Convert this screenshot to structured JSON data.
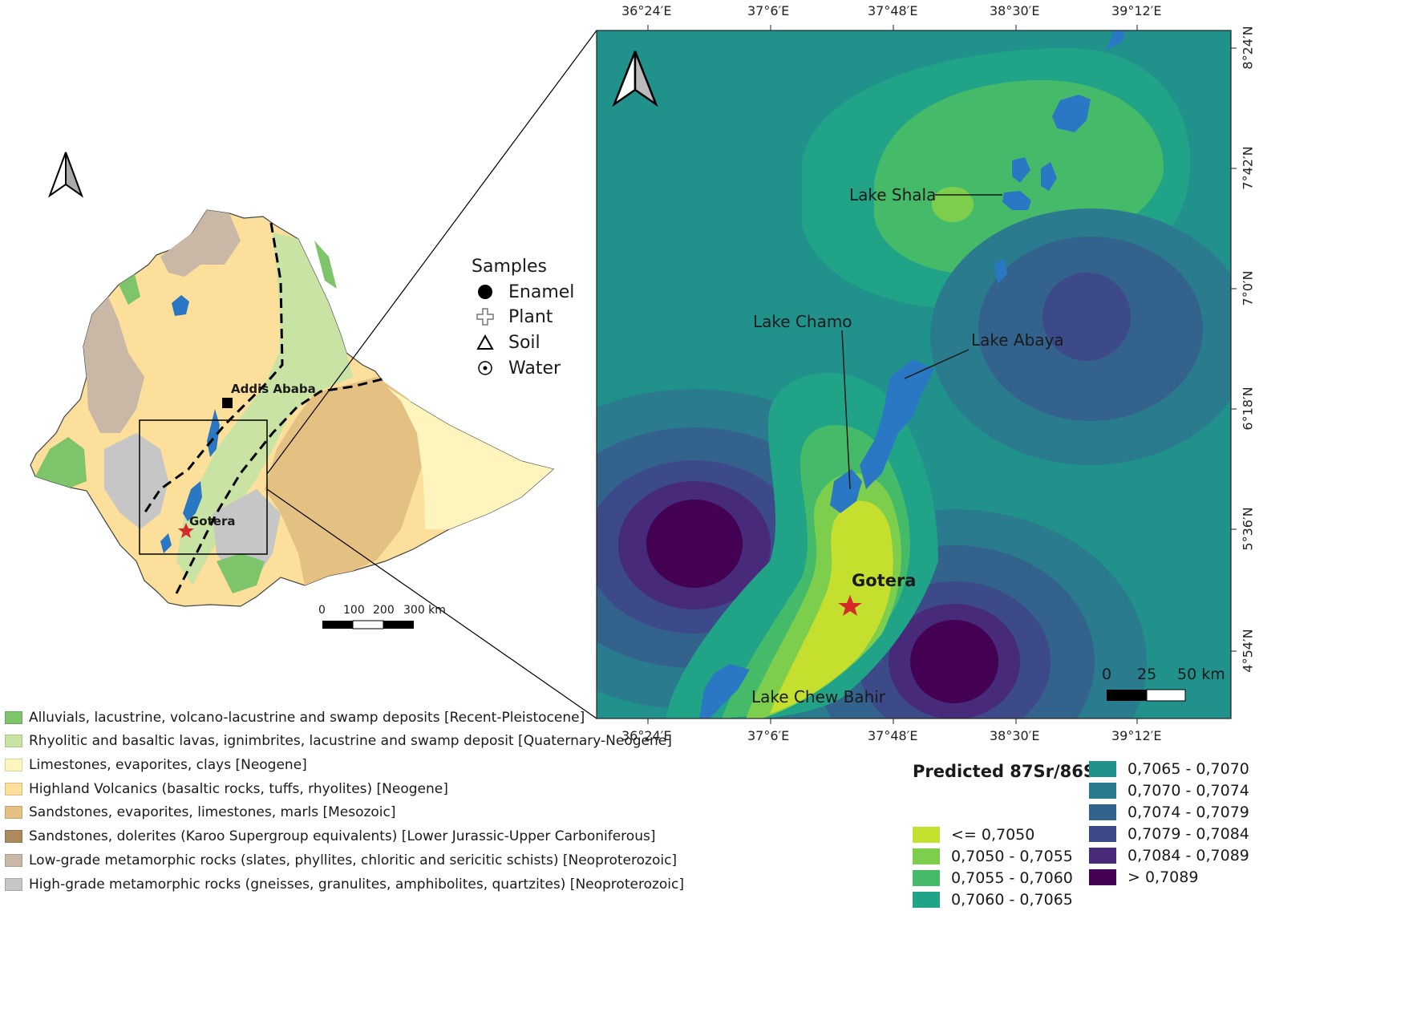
{
  "left_map": {
    "city_label": "Addis Ababa",
    "site_label": "Gotera",
    "scale": {
      "ticks": [
        "0",
        "100",
        "200",
        "300 km"
      ]
    }
  },
  "samples_legend": {
    "title": "Samples",
    "items": [
      {
        "label": "Enamel",
        "icon": "filled-circle-icon"
      },
      {
        "label": "Plant",
        "icon": "cross-outline-icon"
      },
      {
        "label": "Soil",
        "icon": "triangle-outline-icon"
      },
      {
        "label": "Water",
        "icon": "dotted-circle-icon"
      }
    ]
  },
  "geology_legend": [
    {
      "label": "Alluvials, lacustrine, volcano-lacustrine and swamp deposits [Recent-Pleistocene]",
      "color": "#7dc46b"
    },
    {
      "label": "Rhyolitic and basaltic lavas, ignimbrites, lacustrine and swamp deposit [Quaternary-Neogene]",
      "color": "#c8e3a3"
    },
    {
      "label": "Limestones, evaporites, clays [Neogene]",
      "color": "#fdf5bd"
    },
    {
      "label": "Highland Volcanics (basaltic rocks, tuffs, rhyolites) [Neogene]",
      "color": "#fbdf9b"
    },
    {
      "label": "Sandstones, evaporites, limestones, marls [Mesozoic]",
      "color": "#e4c083"
    },
    {
      "label": "Sandstones, dolerites (Karoo Supergroup equivalents) [Lower Jurassic-Upper Carboniferous]",
      "color": "#ad8a5d"
    },
    {
      "label": "Low-grade metamorphic rocks (slates, phyllites, chloritic and sericitic schists)  [Neoproterozoic]",
      "color": "#c8b8a5"
    },
    {
      "label": "High-grade metamorphic rocks (gneisses, granulites, amphibolites, quartzites) [Neoproterozoic]",
      "color": "#c6c6c6"
    }
  ],
  "right_map": {
    "lon_ticks": [
      "36°24′E",
      "37°6′E",
      "37°48′E",
      "38°30′E",
      "39°12′E"
    ],
    "lat_ticks": [
      "8°24′N",
      "7°42′N",
      "7°0′N",
      "6°18′N",
      "5°36′N",
      "4°54′N"
    ],
    "lakes": [
      "Lake Shala",
      "Lake Chamo",
      "Lake Abaya",
      "Lake Chew Bahir"
    ],
    "site_label": "Gotera",
    "scale": {
      "ticks": [
        "0",
        "25",
        "50 km"
      ]
    }
  },
  "sr_legend": {
    "title": "Predicted 87Sr/86Sr",
    "classes": [
      {
        "label": "<= 0,7050",
        "color": "#c5df2e"
      },
      {
        "label": "0,7050 - 0,7055",
        "color": "#7ece4e"
      },
      {
        "label": "0,7055 - 0,7060",
        "color": "#45bb6a"
      },
      {
        "label": "0,7060 - 0,7065",
        "color": "#20a386"
      },
      {
        "label": "0,7065 - 0,7070",
        "color": "#21918c"
      },
      {
        "label": "0,7070 - 0,7074",
        "color": "#2a7b8e"
      },
      {
        "label": "0,7074 - 0,7079",
        "color": "#33638d"
      },
      {
        "label": "0,7079 - 0,7084",
        "color": "#3d4a89"
      },
      {
        "label": "0,7084 - 0,7089",
        "color": "#472a7a"
      },
      {
        "label": "> 0,7089",
        "color": "#440154"
      }
    ]
  },
  "colors": {
    "water": "#2a78c3",
    "site_star": "#d62a2a",
    "rift_line": "#000000"
  }
}
